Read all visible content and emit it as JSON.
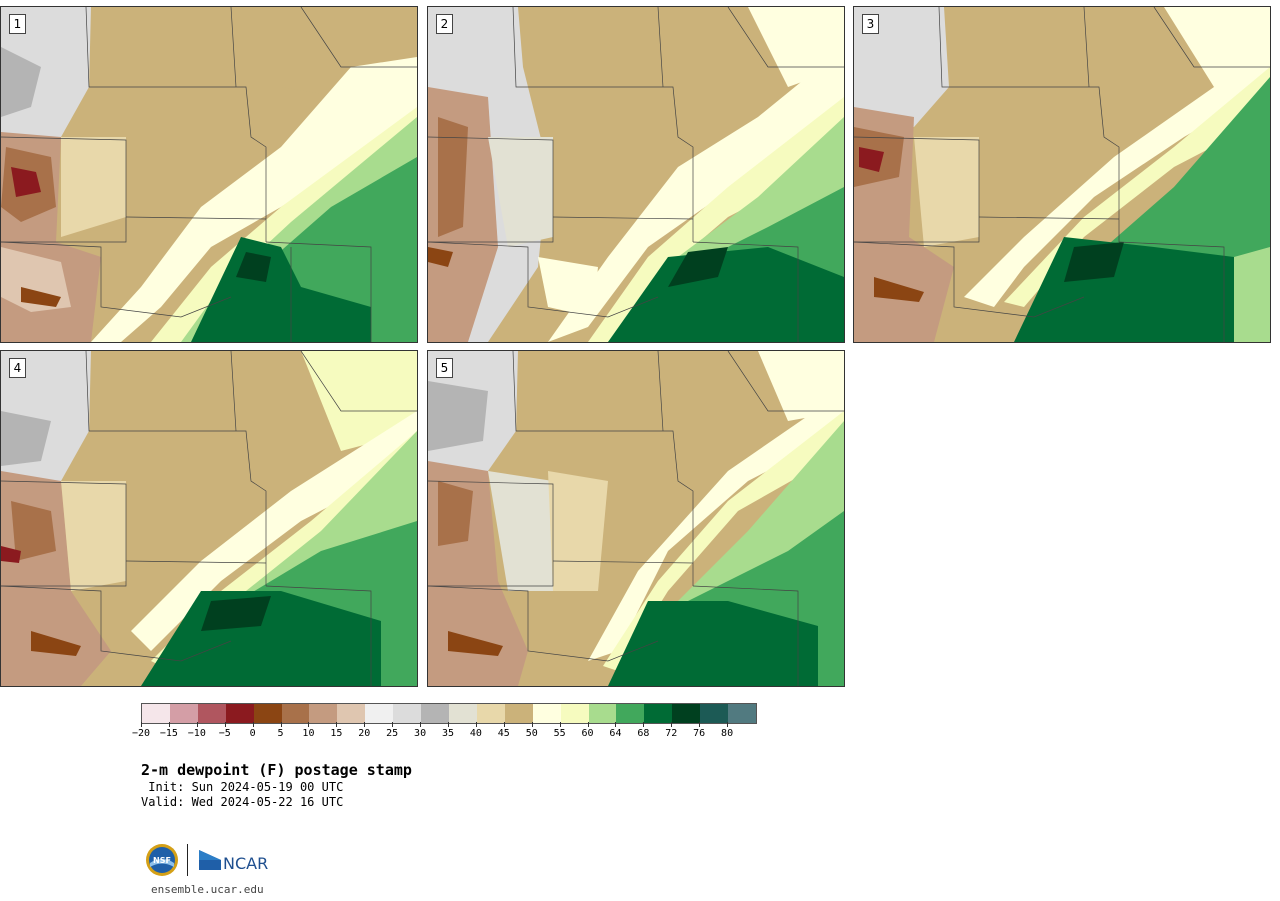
{
  "panels": [
    {
      "label": "1"
    },
    {
      "label": "2"
    },
    {
      "label": "3"
    },
    {
      "label": "4"
    },
    {
      "label": "5"
    }
  ],
  "colorbar": {
    "swatch_colors": [
      "#f5e6ea",
      "#d49ea6",
      "#b0565f",
      "#8b1a1f",
      "#8b4513",
      "#a8714a",
      "#c49b80",
      "#dfc6b0",
      "#f0f0f0",
      "#dcdcdc",
      "#b4b4b4",
      "#e2e1d3",
      "#e8d8aa",
      "#cbb27a",
      "#ffffe0",
      "#f6fbbf",
      "#a8dc8e",
      "#41a85c",
      "#006b35",
      "#00401f",
      "#1c5a55",
      "#517a80"
    ],
    "tick_labels": [
      "−20",
      "−15",
      "−10",
      "−5",
      "0",
      "5",
      "10",
      "15",
      "20",
      "25",
      "30",
      "35",
      "40",
      "45",
      "50",
      "55",
      "60",
      "64",
      "68",
      "72",
      "76",
      "80"
    ]
  },
  "title": "2-m dewpoint (F) postage stamp",
  "init_line": " Init: Sun 2024-05-19 00 UTC",
  "valid_line": "Valid: Wed 2024-05-22 16 UTC",
  "logos": {
    "nsf_text": "NSF",
    "ncar_text": "NCAR",
    "site_url": "ensemble.ucar.edu"
  }
}
